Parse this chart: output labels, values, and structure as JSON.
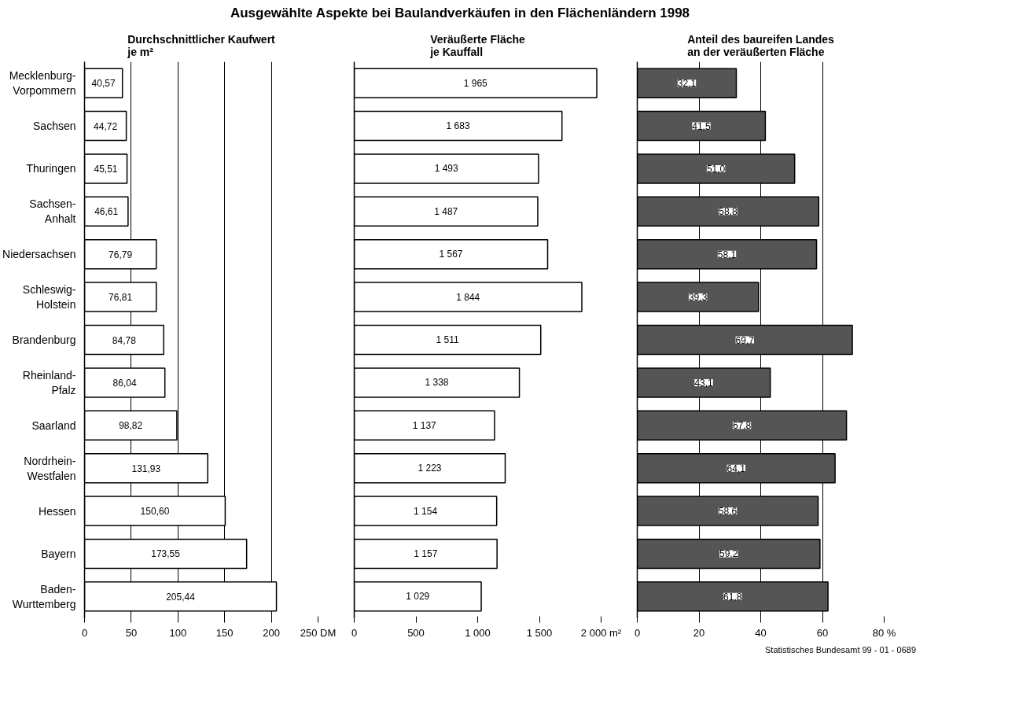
{
  "chart_data": [
    {
      "type": "other",
      "title": "Ausgewählte Aspekte bei Baulandverkäufen in den Flächenländern 1998",
      "annotations": [
        "Statistisches Bundesamt 99 - 01 - 0689"
      ]
    },
    {
      "type": "bar",
      "orientation": "horizontal",
      "title": "Durchschnittlicher Kaufwert\nje m²",
      "categories": [
        "Mecklenburg-Vorpommern",
        "Sachsen",
        "Thuringen",
        "Sachsen-Anhalt",
        "Niedersachsen",
        "Schleswig-Holstein",
        "Brandenburg",
        "Rheinland-Pfalz",
        "Saarland",
        "Nordrhein-Westfalen",
        "Hessen",
        "Bayern",
        "Baden-Wurttemberg"
      ],
      "series": [
        {
          "color": "#ffffff",
          "values": [
            40.57,
            44.72,
            45.51,
            46.61,
            76.79,
            76.81,
            84.78,
            86.04,
            98.82,
            131.93,
            150.6,
            173.55,
            205.44
          ]
        }
      ],
      "value_labels": [
        "40,57",
        "44,72",
        "45,51",
        "46,61",
        "76,79",
        "76,81",
        "84,78",
        "86,04",
        "98,82",
        "131,93",
        "150,60",
        "173,55",
        "205,44"
      ],
      "xlim": [
        0,
        250
      ],
      "xticks": [
        0,
        50,
        100,
        150,
        200,
        {
          "value": 250,
          "label": "250 DM"
        }
      ],
      "grid": "x"
    },
    {
      "type": "bar",
      "orientation": "horizontal",
      "title": "Veräußerte Fläche\nje Kauffall",
      "categories": [
        null,
        null,
        null,
        null,
        null,
        null,
        null,
        null,
        null,
        null,
        null,
        null,
        null
      ],
      "series": [
        {
          "color": "#ffffff",
          "values": [
            1965,
            1683,
            1493,
            1487,
            1567,
            1844,
            1511,
            1338,
            1137,
            1223,
            1154,
            1157,
            1029
          ]
        }
      ],
      "value_labels": [
        "1 965",
        "1 683",
        "1 493",
        "1 487",
        "1 567",
        "1 844",
        "1 511",
        "1 338",
        "1 137",
        "1 223",
        "1 154",
        "1 157",
        "1 029"
      ],
      "xlim": [
        0,
        2000
      ],
      "xticks": [
        0,
        500,
        {
          "value": 1000,
          "label": "1 000"
        },
        {
          "value": 1500,
          "label": "1 500"
        },
        {
          "value": 2000,
          "label": "2 000 m²"
        }
      ],
      "tick_labels": "x"
    },
    {
      "type": "bar",
      "orientation": "horizontal",
      "title": "Anteil des baureifen Landes\nan der veräußerten Fläche",
      "categories": [
        null,
        null,
        null,
        null,
        null,
        null,
        null,
        null,
        null,
        null,
        null,
        null,
        null
      ],
      "series": [
        {
          "color": "#555555",
          "values": [
            32.1,
            41.5,
            51.0,
            58.8,
            58.1,
            39.3,
            69.7,
            43.1,
            67.8,
            64.1,
            58.6,
            59.2,
            61.8
          ]
        }
      ],
      "value_labels": [
        "32,1",
        "41,5",
        "51,0",
        "58,8",
        "58,1",
        "39,3",
        "69,7",
        "43,1",
        "67,8",
        "64,1",
        "58.6",
        "59,2",
        "61,8"
      ],
      "xlim": [
        0,
        80
      ],
      "xticks": [
        0,
        20,
        40,
        60,
        {
          "value": 80,
          "label": "80 %"
        }
      ],
      "grid": "x",
      "tick_labels": "x"
    }
  ]
}
